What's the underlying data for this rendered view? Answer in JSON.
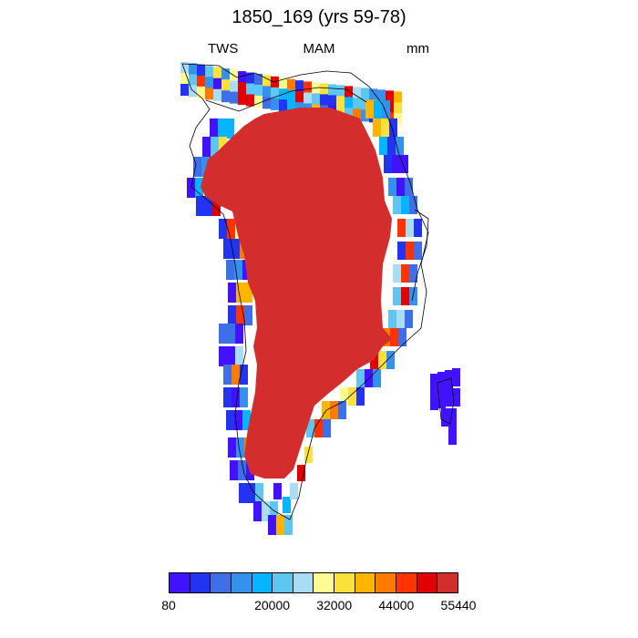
{
  "title": "1850_169 (yrs 59-78)",
  "left_label": "TWS",
  "center_label": "MAM",
  "right_label": "mm",
  "colorbar": {
    "colors": [
      "#4212ff",
      "#2233f2",
      "#3f6fe6",
      "#3491ed",
      "#05b5ff",
      "#5fc6f2",
      "#a9dcf5",
      "#fffb93",
      "#fbe23b",
      "#ffb400",
      "#ff7a00",
      "#ff3300",
      "#e30000",
      "#d42d2d"
    ],
    "tick_labels": [
      "80",
      "20000",
      "32000",
      "44000",
      "55440"
    ]
  },
  "map": {
    "region": "Greenland",
    "interior_value_color": "#d42d2d",
    "island_color": "#4212ff"
  }
}
